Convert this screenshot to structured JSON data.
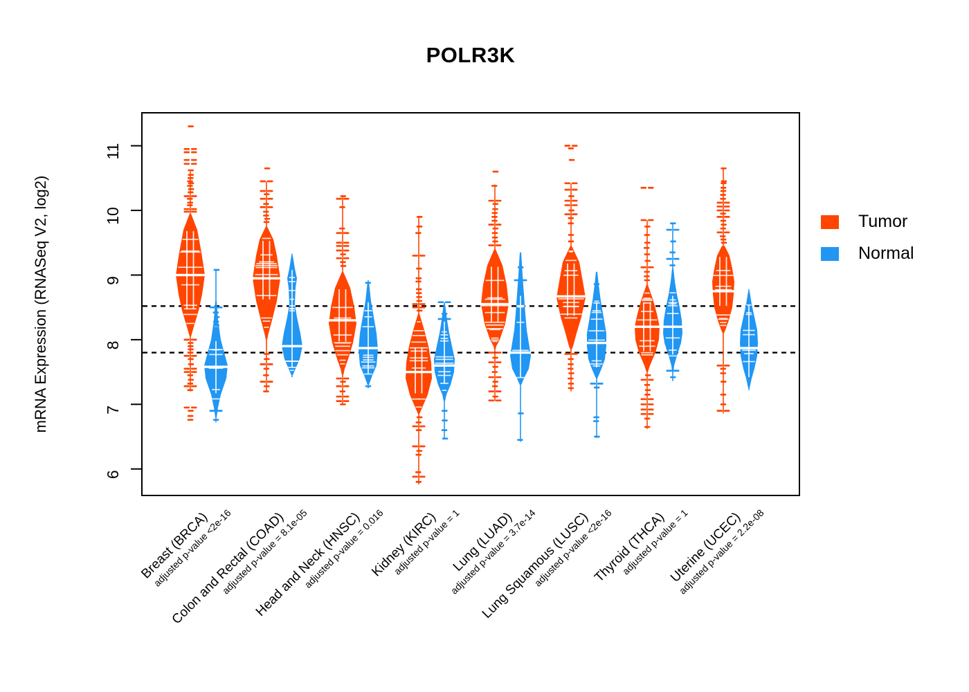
{
  "title": "POLR3K",
  "legend": {
    "items": [
      {
        "label": "Tumor",
        "color": "#FF4500"
      },
      {
        "label": "Normal",
        "color": "#2196F3"
      }
    ]
  },
  "chart_data": {
    "type": "violin",
    "title": "POLR3K",
    "ylabel": "mRNA Expression (RNASeq V2, log2)",
    "xlabel": "",
    "ylim": [
      5.59,
      11.51
    ],
    "yticks": [
      6,
      7,
      8,
      9,
      10,
      11
    ],
    "grid": false,
    "legend_position": "right",
    "series": [
      {
        "name": "Tumor",
        "color": "#FF4500"
      },
      {
        "name": "Normal",
        "color": "#2196F3"
      }
    ],
    "reference_lines": {
      "style": "dashed",
      "color": "#000000",
      "values": [
        8.52,
        7.8
      ]
    },
    "groups": [
      {
        "label": "Breast (BRCA)",
        "pvalue_label": "adjusted p-value <2e-16",
        "tumor": {
          "median": 9.0,
          "q1": 8.6,
          "q3": 9.4,
          "spine": [
            7.2,
            10.6
          ],
          "body": [
            [
              9.95,
              1
            ],
            [
              9.7,
              10
            ],
            [
              9.35,
              16
            ],
            [
              9.0,
              21
            ],
            [
              8.7,
              17
            ],
            [
              8.45,
              12
            ],
            [
              8.2,
              5
            ],
            [
              8.05,
              1
            ]
          ],
          "outliers_high": [
            11.3,
            10.95,
            10.9,
            10.78,
            10.72,
            10.62,
            10.55,
            10.5,
            10.45,
            10.42,
            10.38,
            10.33,
            10.28,
            10.22,
            10.18,
            10.12,
            10.08,
            10.02,
            9.98
          ],
          "outliers_low": [
            8.0,
            7.95,
            7.9,
            7.85,
            7.8,
            7.75,
            7.7,
            7.62,
            7.55,
            7.5,
            7.45,
            7.38,
            7.32,
            7.28,
            7.22,
            6.95,
            6.9,
            6.82,
            6.76
          ]
        },
        "normal": {
          "median": 7.58,
          "q1": 7.38,
          "q3": 7.82,
          "spine": [
            6.72,
            9.08
          ],
          "body": [
            [
              8.6,
              1
            ],
            [
              8.3,
              3
            ],
            [
              8.0,
              7
            ],
            [
              7.8,
              12
            ],
            [
              7.6,
              17
            ],
            [
              7.4,
              15
            ],
            [
              7.15,
              7
            ],
            [
              6.95,
              3
            ],
            [
              6.8,
              1
            ]
          ],
          "outliers_high": [
            9.08,
            8.5,
            8.42,
            8.35,
            8.28,
            8.22
          ],
          "outliers_low": [
            6.9,
            6.76
          ]
        }
      },
      {
        "label": "Colon and Rectal (COAD)",
        "pvalue_label": "adjusted p-value = 8.1e-05",
        "tumor": {
          "median": 8.95,
          "q1": 8.6,
          "q3": 9.3,
          "spine": [
            7.2,
            10.45
          ],
          "body": [
            [
              9.75,
              1
            ],
            [
              9.55,
              10
            ],
            [
              9.3,
              15
            ],
            [
              8.95,
              20
            ],
            [
              8.6,
              15
            ],
            [
              8.3,
              8
            ],
            [
              8.1,
              3
            ],
            [
              8.0,
              1
            ]
          ],
          "outliers_high": [
            10.65,
            10.45,
            10.3,
            10.25,
            10.18,
            10.1,
            10.05,
            9.98,
            9.92,
            9.87,
            9.82
          ],
          "outliers_low": [
            7.78,
            7.7,
            7.62,
            7.55,
            7.45,
            7.35,
            7.28,
            7.2
          ]
        },
        "normal": {
          "median": 7.9,
          "q1": 7.65,
          "q3": 8.2,
          "spine": [
            7.42,
            9.33
          ],
          "body": [
            [
              9.3,
              1
            ],
            [
              9.1,
              4
            ],
            [
              8.95,
              7
            ],
            [
              8.8,
              5
            ],
            [
              8.55,
              4
            ],
            [
              8.35,
              7
            ],
            [
              8.1,
              12
            ],
            [
              7.9,
              15
            ],
            [
              7.7,
              11
            ],
            [
              7.55,
              5
            ],
            [
              7.45,
              1
            ]
          ],
          "outliers_high": [],
          "outliers_low": []
        }
      },
      {
        "label": "Head and Neck (HNSC)",
        "pvalue_label": "adjusted p-value = 0.016",
        "tumor": {
          "median": 8.3,
          "q1": 7.95,
          "q3": 8.6,
          "spine": [
            7.0,
            10.22
          ],
          "body": [
            [
              9.05,
              1
            ],
            [
              8.8,
              11
            ],
            [
              8.5,
              17
            ],
            [
              8.25,
              20
            ],
            [
              7.95,
              15
            ],
            [
              7.7,
              8
            ],
            [
              7.55,
              3
            ],
            [
              7.45,
              1
            ]
          ],
          "outliers_high": [
            10.22,
            10.18,
            10.05,
            9.72,
            9.65,
            9.5,
            9.45,
            9.38,
            9.32,
            9.26,
            9.2,
            9.14
          ],
          "outliers_low": [
            7.4,
            7.35,
            7.28,
            7.2,
            7.12,
            7.05,
            7.0
          ]
        },
        "normal": {
          "median": 7.87,
          "q1": 7.62,
          "q3": 8.12,
          "spine": [
            7.25,
            8.92
          ],
          "body": [
            [
              8.9,
              1
            ],
            [
              8.6,
              4
            ],
            [
              8.35,
              8
            ],
            [
              8.1,
              12
            ],
            [
              7.85,
              14
            ],
            [
              7.6,
              12
            ],
            [
              7.45,
              6
            ],
            [
              7.3,
              1
            ]
          ],
          "outliers_high": [
            8.88
          ],
          "outliers_low": [
            7.28
          ]
        }
      },
      {
        "label": "Kidney (KIRC)",
        "pvalue_label": "adjusted p-value = 1",
        "tumor": {
          "median": 7.5,
          "q1": 7.2,
          "q3": 7.9,
          "spine": [
            5.76,
            9.9
          ],
          "body": [
            [
              8.4,
              1
            ],
            [
              8.15,
              8
            ],
            [
              7.9,
              14
            ],
            [
              7.65,
              18
            ],
            [
              7.4,
              19
            ],
            [
              7.15,
              13
            ],
            [
              6.95,
              5
            ],
            [
              6.85,
              1
            ]
          ],
          "outliers_high": [
            9.9,
            9.75,
            9.65,
            9.3,
            9.1,
            8.95,
            8.9,
            8.78,
            8.72,
            8.66,
            8.6,
            8.55,
            8.5,
            8.45
          ],
          "outliers_low": [
            6.8,
            6.72,
            6.66,
            6.6,
            6.35,
            6.28,
            6.22,
            5.95,
            5.88,
            5.8
          ]
        },
        "normal": {
          "median": 7.6,
          "q1": 7.38,
          "q3": 7.85,
          "spine": [
            6.47,
            8.58
          ],
          "body": [
            [
              8.55,
              1
            ],
            [
              8.3,
              4
            ],
            [
              8.1,
              7
            ],
            [
              7.9,
              11
            ],
            [
              7.7,
              15
            ],
            [
              7.5,
              14
            ],
            [
              7.3,
              9
            ],
            [
              7.15,
              3
            ],
            [
              7.05,
              1
            ]
          ],
          "outliers_high": [
            8.58,
            8.4,
            8.32
          ],
          "outliers_low": [
            6.9,
            6.75,
            6.6,
            6.47
          ]
        }
      },
      {
        "label": "Lung (LUAD)",
        "pvalue_label": "adjusted p-value = 3.7e-14",
        "tumor": {
          "median": 8.55,
          "q1": 8.2,
          "q3": 8.95,
          "spine": [
            7.05,
            10.4
          ],
          "body": [
            [
              9.4,
              1
            ],
            [
              9.15,
              11
            ],
            [
              8.85,
              17
            ],
            [
              8.55,
              20
            ],
            [
              8.25,
              15
            ],
            [
              8.0,
              7
            ],
            [
              7.9,
              2
            ],
            [
              7.85,
              1
            ]
          ],
          "outliers_high": [
            10.6,
            10.38,
            10.15,
            10.1,
            10.02,
            9.96,
            9.9,
            9.84,
            9.78,
            9.72,
            9.65,
            9.58,
            9.52,
            9.46
          ],
          "outliers_low": [
            7.8,
            7.72,
            7.65,
            7.58,
            7.5,
            7.42,
            7.35,
            7.28,
            7.2,
            7.12,
            7.06
          ]
        },
        "normal": {
          "median": 7.8,
          "q1": 7.55,
          "q3": 8.1,
          "spine": [
            6.42,
            9.35
          ],
          "body": [
            [
              9.35,
              1
            ],
            [
              9.0,
              3
            ],
            [
              8.7,
              5
            ],
            [
              8.4,
              7
            ],
            [
              8.15,
              9
            ],
            [
              7.95,
              12
            ],
            [
              7.75,
              15
            ],
            [
              7.55,
              12
            ],
            [
              7.4,
              5
            ],
            [
              7.3,
              1
            ]
          ],
          "outliers_high": [
            9.12,
            8.92
          ],
          "outliers_low": [
            6.86,
            6.45
          ]
        }
      },
      {
        "label": "Lung Squamous (LUSC)",
        "pvalue_label": "adjusted p-value <2e-16",
        "tumor": {
          "median": 8.67,
          "q1": 8.3,
          "q3": 9.05,
          "spine": [
            7.2,
            10.42
          ],
          "body": [
            [
              9.45,
              1
            ],
            [
              9.2,
              12
            ],
            [
              8.9,
              17
            ],
            [
              8.65,
              21
            ],
            [
              8.35,
              15
            ],
            [
              8.1,
              8
            ],
            [
              7.9,
              3
            ],
            [
              7.85,
              1
            ]
          ],
          "outliers_high": [
            11.0,
            10.96,
            10.78,
            10.42,
            10.32,
            10.22,
            10.15,
            10.08,
            10.0,
            9.94,
            9.88,
            9.8,
            9.62,
            9.52
          ],
          "outliers_low": [
            7.78,
            7.7,
            7.62,
            7.55,
            7.48,
            7.4,
            7.32,
            7.25
          ]
        },
        "normal": {
          "median": 7.95,
          "q1": 7.7,
          "q3": 8.25,
          "spine": [
            6.48,
            9.05
          ],
          "body": [
            [
              9.05,
              1
            ],
            [
              8.85,
              3
            ],
            [
              8.6,
              6
            ],
            [
              8.35,
              10
            ],
            [
              8.1,
              14
            ],
            [
              7.9,
              14
            ],
            [
              7.7,
              12
            ],
            [
              7.55,
              7
            ],
            [
              7.45,
              3
            ],
            [
              7.4,
              1
            ]
          ],
          "outliers_high": [
            8.86
          ],
          "outliers_low": [
            7.32,
            7.26,
            6.8,
            6.74,
            6.5
          ]
        }
      },
      {
        "label": "Thyroid (THCA)",
        "pvalue_label": "adjusted p-value = 1",
        "tumor": {
          "median": 8.2,
          "q1": 7.9,
          "q3": 8.45,
          "spine": [
            6.62,
            9.85
          ],
          "body": [
            [
              8.85,
              1
            ],
            [
              8.6,
              9
            ],
            [
              8.4,
              14
            ],
            [
              8.2,
              18
            ],
            [
              8.0,
              17
            ],
            [
              7.8,
              12
            ],
            [
              7.6,
              4
            ],
            [
              7.5,
              1
            ]
          ],
          "outliers_high": [
            10.35,
            9.85,
            9.75,
            9.62,
            9.5,
            9.42,
            9.32,
            9.22,
            9.12,
            9.05,
            8.98,
            8.92
          ],
          "outliers_low": [
            7.45,
            7.38,
            7.3,
            7.22,
            7.15,
            7.08,
            7.0,
            6.92,
            6.85,
            6.78,
            6.65
          ]
        },
        "normal": {
          "median": 8.2,
          "q1": 7.98,
          "q3": 8.42,
          "spine": [
            7.36,
            9.8
          ],
          "body": [
            [
              9.1,
              1
            ],
            [
              8.9,
              3
            ],
            [
              8.7,
              6
            ],
            [
              8.5,
              10
            ],
            [
              8.3,
              13
            ],
            [
              8.1,
              14
            ],
            [
              7.95,
              12
            ],
            [
              7.75,
              6
            ],
            [
              7.6,
              2
            ],
            [
              7.5,
              1
            ]
          ],
          "outliers_high": [
            9.8,
            9.7,
            9.52,
            9.35,
            9.25,
            9.15
          ],
          "outliers_low": [
            7.52,
            7.42
          ]
        }
      },
      {
        "label": "Uterine (UCEC)",
        "pvalue_label": "adjusted p-value = 2.2e-08",
        "tumor": {
          "median": 8.75,
          "q1": 8.45,
          "q3": 9.1,
          "spine": [
            6.86,
            10.65
          ],
          "body": [
            [
              9.45,
              2
            ],
            [
              9.3,
              9
            ],
            [
              9.1,
              13
            ],
            [
              8.9,
              16
            ],
            [
              8.7,
              15
            ],
            [
              8.5,
              13
            ],
            [
              8.3,
              8
            ],
            [
              8.15,
              3
            ],
            [
              8.1,
              1
            ]
          ],
          "outliers_high": [
            10.65,
            10.45,
            10.42,
            10.35,
            10.3,
            10.24,
            10.18,
            10.12,
            10.06,
            10.0,
            9.95,
            9.9,
            9.84,
            9.78,
            9.72,
            9.66,
            9.6,
            9.55,
            9.5
          ],
          "outliers_low": [
            7.6,
            7.55,
            7.48,
            7.35,
            7.15,
            7.0,
            6.9
          ]
        },
        "normal": {
          "median": 7.87,
          "q1": 7.62,
          "q3": 8.12,
          "spine": [
            7.22,
            8.78
          ],
          "body": [
            [
              8.75,
              1
            ],
            [
              8.55,
              4
            ],
            [
              8.35,
              8
            ],
            [
              8.15,
              12
            ],
            [
              7.95,
              13
            ],
            [
              7.75,
              12
            ],
            [
              7.55,
              8
            ],
            [
              7.4,
              4
            ],
            [
              7.25,
              1
            ]
          ],
          "outliers_high": [],
          "outliers_low": []
        }
      }
    ]
  }
}
